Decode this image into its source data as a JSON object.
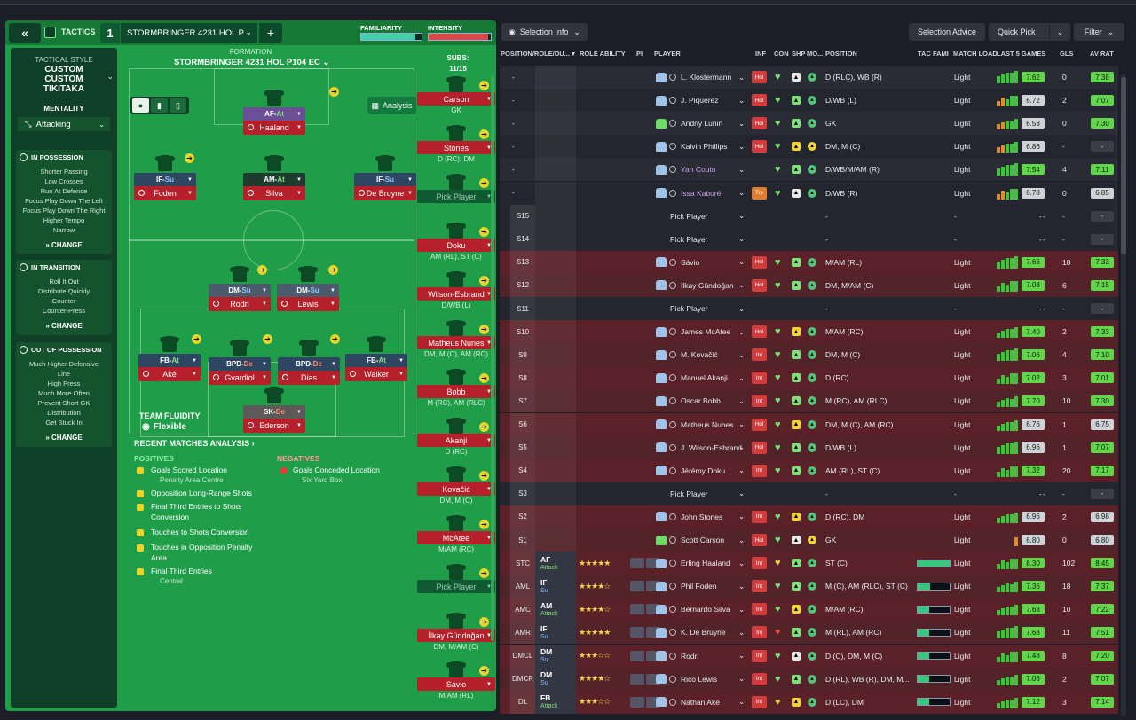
{
  "header": {
    "tactics_label": "TACTICS",
    "slot": "1",
    "tactic_name": "STORMBRINGER 4231 HOL P...",
    "familiarity_label": "FAMILIARITY",
    "intensity_label": "INTENSITY",
    "familiarity_level": 0.9,
    "intensity_level": 0.95
  },
  "side": {
    "tactical_style_label": "TACTICAL STYLE",
    "tactical_style_value": "CUSTOM CUSTOM TIKITAKA",
    "mentality_label": "MENTALITY",
    "mentality_value": "Attacking",
    "in_possession": {
      "title": "IN POSSESSION",
      "items": [
        "Shorter Passing",
        "Low Crosses",
        "Run At Defence",
        "Focus Play Down The Left",
        "Focus Play Down The Right",
        "Higher Tempo",
        "Narrow"
      ],
      "change": "CHANGE"
    },
    "in_transition": {
      "title": "IN TRANSITION",
      "items": [
        "Roll It Out",
        "Distribute Quickly",
        "Counter",
        "Counter-Press"
      ],
      "change": "CHANGE"
    },
    "out_of_possession": {
      "title": "OUT OF POSSESSION",
      "items": [
        "Much Higher Defensive",
        "Line",
        "High Press",
        "Much More Often",
        "Prevent Short GK",
        "Distribution",
        "Get Stuck In"
      ],
      "change": "CHANGE"
    }
  },
  "formation": {
    "label": "FORMATION",
    "name": "STORMBRINGER 4231 HOL P104 EC",
    "subs_label": "SUBS:",
    "subs_count": "11/15",
    "analysis_label": "Analysis"
  },
  "pitch_players": [
    {
      "role": "AF",
      "duty": "At",
      "name": "Haaland",
      "color": "#6b4f95"
    },
    {
      "role": "IF",
      "duty": "Su",
      "name": "Foden",
      "color": "#2f4663"
    },
    {
      "role": "AM",
      "duty": "At",
      "name": "Silva",
      "color": "#1f3a2e"
    },
    {
      "role": "IF",
      "duty": "Su",
      "name": "De Bruyne",
      "color": "#2f4663"
    },
    {
      "role": "DM",
      "duty": "Su",
      "name": "Rodri",
      "color": "#4b5b6b"
    },
    {
      "role": "DM",
      "duty": "Su",
      "name": "Lewis",
      "color": "#4b5b6b"
    },
    {
      "role": "FB",
      "duty": "At",
      "name": "Aké",
      "color": "#2f4663"
    },
    {
      "role": "BPD",
      "duty": "De",
      "name": "Gvardiol",
      "color": "#2f4663"
    },
    {
      "role": "BPD",
      "duty": "De",
      "name": "Dias",
      "color": "#2f4663"
    },
    {
      "role": "FB",
      "duty": "At",
      "name": "Walker",
      "color": "#2f4663"
    },
    {
      "role": "SK",
      "duty": "De",
      "name": "Ederson",
      "color": "#5c5a58"
    }
  ],
  "subs": [
    {
      "name": "Carson",
      "pos": "GK"
    },
    {
      "name": "Stones",
      "pos": "D (RC), DM"
    },
    {
      "name": "Pick Player",
      "pos": ""
    },
    {
      "name": "Doku",
      "pos": "AM (RL), ST (C)"
    },
    {
      "name": "Wilson-Esbrand",
      "pos": "D/WB (L)"
    },
    {
      "name": "Matheus Nunes",
      "pos": "DM, M (C), AM (RC)"
    },
    {
      "name": "Bobb",
      "pos": "M (RC), AM (RLC)"
    },
    {
      "name": "Akanji",
      "pos": "D (RC)"
    },
    {
      "name": "Kovačić",
      "pos": "DM, M (C)"
    },
    {
      "name": "McAtee",
      "pos": "M/AM (RC)"
    },
    {
      "name": "Pick Player",
      "pos": ""
    },
    {
      "name": "İlkay Gündoğan",
      "pos": "DM, M/AM (C)"
    },
    {
      "name": "Sávio",
      "pos": "M/AM (RL)"
    }
  ],
  "fluidity": {
    "label": "TEAM FLUIDITY",
    "value": "Flexible"
  },
  "analysis": {
    "title": "RECENT MATCHES ANALYSIS ›",
    "positives_label": "POSITIVES",
    "negatives_label": "NEGATIVES",
    "positives": [
      [
        "Goals Scored Location",
        "Penalty Area Centre"
      ],
      [
        "Opposition Long-Range Shots",
        ""
      ],
      [
        "Final Third Entries to Shots",
        "Conversion"
      ],
      [
        "Touches to Shots Conversion",
        ""
      ],
      [
        "Touches in Opposition Penalty",
        "Area"
      ],
      [
        "Final Third Entries",
        "Central"
      ]
    ],
    "negatives": [
      [
        "Goals Conceded Location",
        "Six Yard Box"
      ]
    ]
  },
  "toolbar": {
    "selection_info": "Selection Info",
    "selection_advice": "Selection Advice",
    "quick_pick": "Quick Pick",
    "filter": "Filter"
  },
  "columns": {
    "pos": "POSITION/ROLE/DU...",
    "role_ability": "ROLE ABILITY",
    "pi": "PI",
    "player": "PLAYER",
    "inf": "INF",
    "con": "CON",
    "shp": "SHP",
    "mo": "MO...",
    "position": "POSITION",
    "tac": "TAC FAMI",
    "load": "MATCH LOAD",
    "last5": "LAST 5 GAMES",
    "gls": "GLS",
    "avr": "AV RAT"
  },
  "rows": [
    {
      "slot": "-",
      "player": "L. Klostermann",
      "inf": "Hol",
      "position": "D (RLC), WB (R)",
      "load": "Light",
      "last": "7.62",
      "gls": "0",
      "av": "7.38"
    },
    {
      "slot": "-",
      "player": "J. Piquerez",
      "inf": "Hol",
      "position": "D/WB (L)",
      "load": "Light",
      "last": "6.72",
      "gls": "2",
      "av": "7.07"
    },
    {
      "slot": "-",
      "player": "Andriy Lunin",
      "inf": "Hol",
      "position": "GK",
      "load": "Light",
      "last": "6.53",
      "gls": "0",
      "av": "7.30"
    },
    {
      "slot": "-",
      "player": "Kalvin Phillips",
      "inf": "Hol",
      "position": "DM, M (C)",
      "load": "Light",
      "last": "6.86",
      "gls": "-",
      "av": "-"
    },
    {
      "slot": "-",
      "player": "Yan Couto",
      "inf": "",
      "position": "D/WB/M/AM (R)",
      "load": "Light",
      "last": "7.54",
      "gls": "4",
      "av": "7.11"
    },
    {
      "slot": "-",
      "player": "Issa Kaboré",
      "inf": "Trv",
      "position": "D/WB (R)",
      "load": "Light",
      "last": "6.78",
      "gls": "0",
      "av": "6.85"
    },
    {
      "slot": "S15",
      "player": "Pick Player",
      "inf": "",
      "position": "-",
      "load": "-",
      "last": "-",
      "gls": "-",
      "av": "-"
    },
    {
      "slot": "S14",
      "player": "Pick Player",
      "inf": "",
      "position": "-",
      "load": "-",
      "last": "-",
      "gls": "-",
      "av": "-"
    },
    {
      "slot": "S13",
      "player": "Sávio",
      "inf": "Hol",
      "position": "M/AM (RL)",
      "load": "Light",
      "last": "7.66",
      "gls": "18",
      "av": "7.33"
    },
    {
      "slot": "S12",
      "player": "İlkay Gündoğan",
      "inf": "Hol",
      "position": "DM, M/AM (C)",
      "load": "Light",
      "last": "7.08",
      "gls": "6",
      "av": "7.15"
    },
    {
      "slot": "S11",
      "player": "Pick Player",
      "inf": "",
      "position": "-",
      "load": "-",
      "last": "-",
      "gls": "-",
      "av": "-"
    },
    {
      "slot": "S10",
      "player": "James McAtee",
      "inf": "Hol",
      "position": "M/AM (RC)",
      "load": "Light",
      "last": "7.40",
      "gls": "2",
      "av": "7.33"
    },
    {
      "slot": "S9",
      "player": "M. Kovačić",
      "inf": "Int",
      "position": "DM, M (C)",
      "load": "Light",
      "last": "7.06",
      "gls": "4",
      "av": "7.10"
    },
    {
      "slot": "S8",
      "player": "Manuel Akanji",
      "inf": "Int",
      "position": "D (RC)",
      "load": "Light",
      "last": "7.02",
      "gls": "3",
      "av": "7.01"
    },
    {
      "slot": "S7",
      "player": "Oscar Bobb",
      "inf": "Int",
      "position": "M (RC), AM (RLC)",
      "load": "Light",
      "last": "7.70",
      "gls": "10",
      "av": "7.30"
    },
    {
      "slot": "S6",
      "player": "Matheus Nunes",
      "inf": "Hol",
      "position": "DM, M (C), AM (RC)",
      "load": "Light",
      "last": "6.76",
      "gls": "1",
      "av": "6.75"
    },
    {
      "slot": "S5",
      "player": "J. Wilson-Esbrand",
      "inf": "Hol",
      "position": "D/WB (L)",
      "load": "Light",
      "last": "6.96",
      "gls": "1",
      "av": "7.07"
    },
    {
      "slot": "S4",
      "player": "Jérémy Doku",
      "inf": "Int",
      "position": "AM (RL), ST (C)",
      "load": "Light",
      "last": "7.32",
      "gls": "20",
      "av": "7.17"
    },
    {
      "slot": "S3",
      "player": "Pick Player",
      "inf": "",
      "position": "-",
      "load": "-",
      "last": "-",
      "gls": "-",
      "av": "-"
    },
    {
      "slot": "S2",
      "player": "John Stones",
      "inf": "Int",
      "position": "D (RC), DM",
      "load": "Light",
      "last": "6.96",
      "gls": "2",
      "av": "6.98"
    },
    {
      "slot": "S1",
      "player": "Scott Carson",
      "inf": "Hol",
      "position": "GK",
      "load": "Light",
      "last": "6.80",
      "gls": "0",
      "av": "6.80"
    },
    {
      "slot": "STC",
      "role": "AF",
      "duty": "Attack",
      "player": "Erling Haaland",
      "inf": "Int",
      "position": "ST (C)",
      "load": "Light",
      "last": "8.30",
      "gls": "102",
      "av": "8.45"
    },
    {
      "slot": "AML",
      "role": "IF",
      "duty": "Su",
      "player": "Phil Foden",
      "inf": "Int",
      "position": "M (C), AM (RLC), ST (C)",
      "load": "Light",
      "last": "7.36",
      "gls": "18",
      "av": "7.37"
    },
    {
      "slot": "AMC",
      "role": "AM",
      "duty": "Attack",
      "player": "Bernardo Silva",
      "inf": "Int",
      "position": "M/AM (RC)",
      "load": "Light",
      "last": "7.68",
      "gls": "10",
      "av": "7.22"
    },
    {
      "slot": "AMR",
      "role": "IF",
      "duty": "Su",
      "player": "K. De Bruyne",
      "inf": "Inj",
      "position": "M (RL), AM (RC)",
      "load": "Light",
      "last": "7.68",
      "gls": "11",
      "av": "7.51"
    },
    {
      "slot": "DMCL",
      "role": "DM",
      "duty": "Su",
      "player": "Rodri",
      "inf": "Int",
      "position": "D (C), DM, M (C)",
      "load": "Light",
      "last": "7.48",
      "gls": "8",
      "av": "7.20"
    },
    {
      "slot": "DMCR",
      "role": "DM",
      "duty": "Su",
      "player": "Rico Lewis",
      "inf": "Int",
      "position": "D (RL), WB (R), DM, M...",
      "load": "Light",
      "last": "7.06",
      "gls": "2",
      "av": "7.07"
    },
    {
      "slot": "DL",
      "role": "FB",
      "duty": "Attack",
      "player": "Nathan Aké",
      "inf": "Int",
      "position": "D (LC), DM",
      "load": "Light",
      "last": "7.12",
      "gls": "3",
      "av": "7.14"
    }
  ]
}
